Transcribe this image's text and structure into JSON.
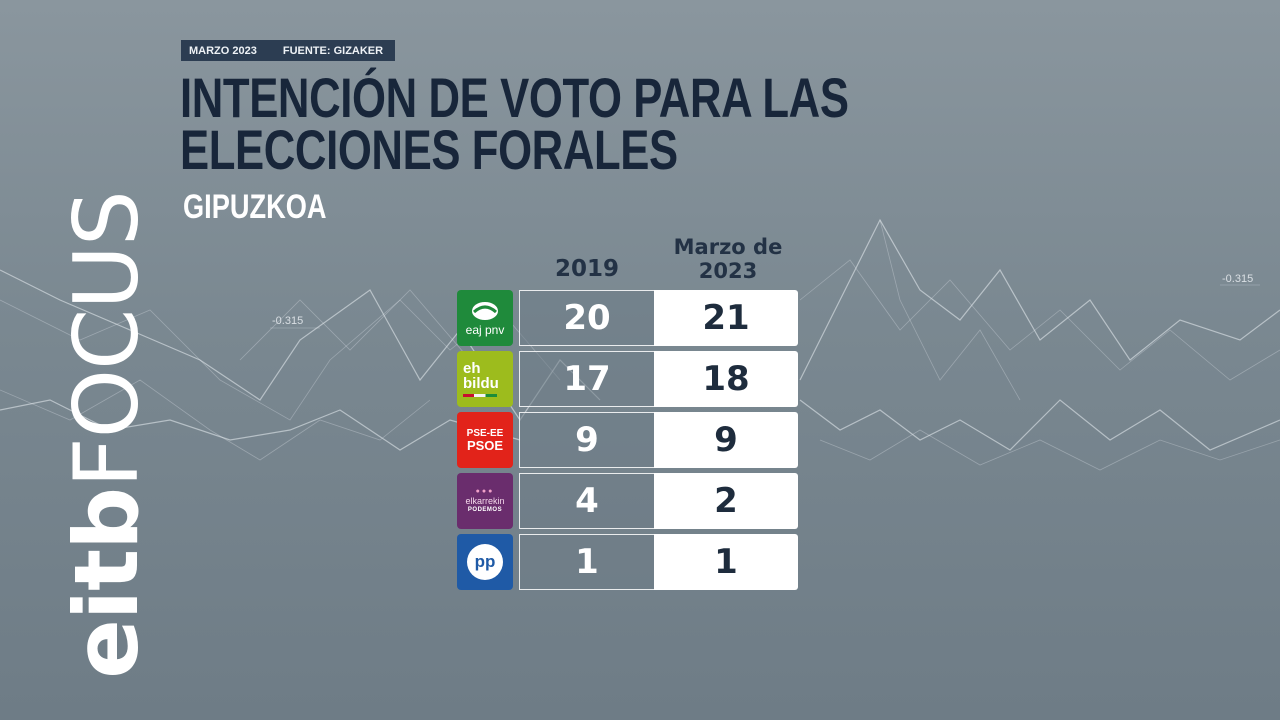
{
  "brand": {
    "part1": "eitb",
    "part2": "FOCUS"
  },
  "header": {
    "date": "MARZO 2023",
    "source": "FUENTE: GIZAKER"
  },
  "title": "INTENCIÓN DE VOTO PARA LAS ELECCIONES FORALES",
  "subtitle": "GIPUZKOA",
  "background_labels": [
    "-0.315",
    "-0.315"
  ],
  "columns": {
    "previous": "2019",
    "current": "Marzo de 2023"
  },
  "parties": [
    {
      "logo_text": "eaj pnv",
      "logo_icon": "pnv-logo-icon",
      "color": "#1f8a3b",
      "seats_2019": "20",
      "seats_2023": "21"
    },
    {
      "logo_text": "eh bildu",
      "logo_icon": "bildu-logo-icon",
      "color": "#9dbc1d",
      "seats_2019": "17",
      "seats_2023": "18"
    },
    {
      "logo_text_top": "PSE-EE",
      "logo_text": "PSOE",
      "logo_icon": "psoe-logo-icon",
      "color": "#e2231a",
      "seats_2019": "9",
      "seats_2023": "9"
    },
    {
      "logo_text": "elkarrekin",
      "logo_text_sub": "PODEMOS",
      "logo_icon": "podemos-logo-icon",
      "color": "#6a2d6d",
      "seats_2019": "4",
      "seats_2023": "2"
    },
    {
      "logo_text": "pp",
      "logo_icon": "pp-logo-icon",
      "color": "#1f5aa6",
      "seats_2019": "1",
      "seats_2023": "1"
    }
  ]
}
